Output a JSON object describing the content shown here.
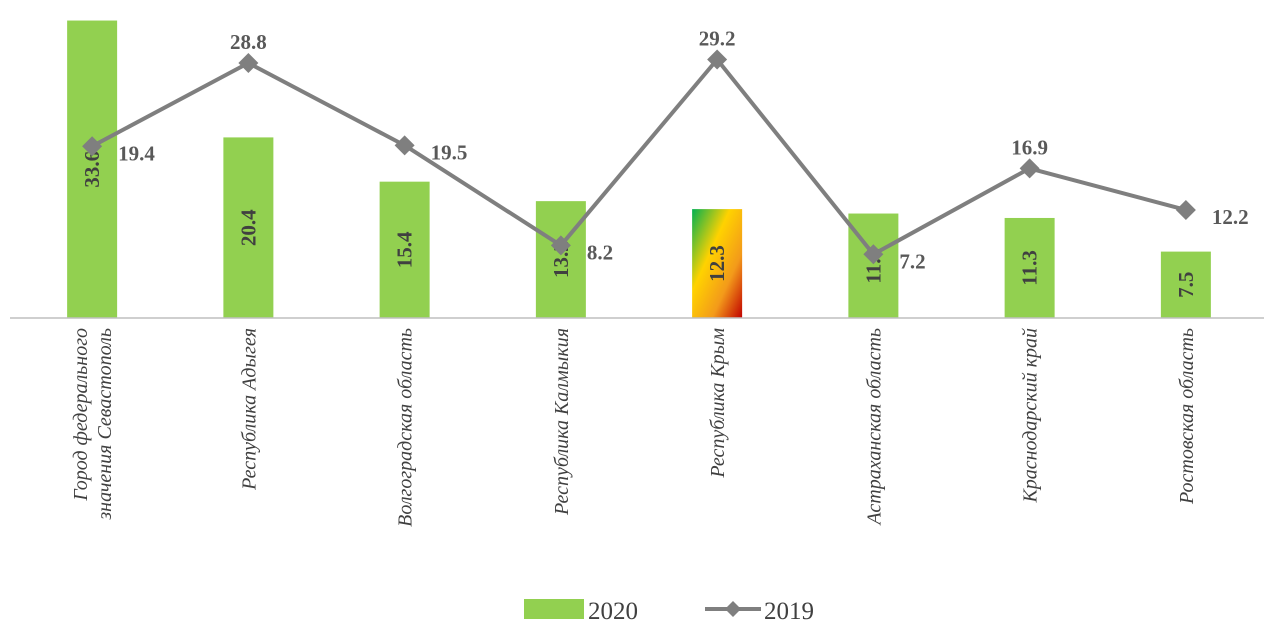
{
  "chart_data": {
    "type": "bar",
    "categories": [
      [
        "Город федерального",
        "значения Севастополь"
      ],
      [
        "Республика Адыгея"
      ],
      [
        "Волгоградская область"
      ],
      [
        "Республика Калмыкия"
      ],
      [
        "Республика Крым"
      ],
      [
        "Астраханская область"
      ],
      [
        "Краснодарский край"
      ],
      [
        "Ростовская область"
      ]
    ],
    "series": [
      {
        "name": "2020",
        "type": "bar",
        "color": "#92d050",
        "values": [
          33.6,
          20.4,
          15.4,
          13.2,
          12.3,
          11.8,
          11.3,
          7.5
        ],
        "labels": [
          "33.6",
          "20.4",
          "15.4",
          "13.2",
          "12.3",
          "11.8",
          "11.3",
          "7.5"
        ]
      },
      {
        "name": "2019",
        "type": "line",
        "color": "#7f7f7f",
        "marker": "diamond",
        "values": [
          19.4,
          28.8,
          19.5,
          8.2,
          29.2,
          7.2,
          16.9,
          12.2
        ],
        "labels": [
          "19.4",
          "28.8",
          "19.5",
          "8.2",
          "29.2",
          "7.2",
          "16.9",
          "12.2"
        ]
      }
    ],
    "highlight": {
      "category_index": 4,
      "fill": "gradient green-yellow-orange-red"
    },
    "ylim": [
      0,
      34
    ],
    "grid": false,
    "legend_position": "bottom",
    "legend": [
      {
        "label": "2020",
        "symbol": "bar"
      },
      {
        "label": "2019",
        "symbol": "line-diamond"
      }
    ]
  }
}
